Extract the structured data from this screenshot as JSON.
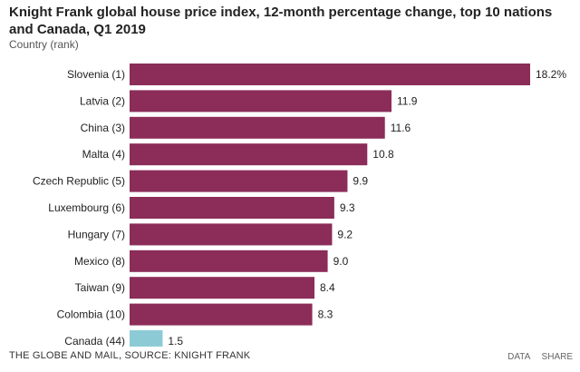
{
  "header": {
    "title": "Knight Frank global house price index, 12-month percentage change, top 10 nations and Canada, Q1 2019",
    "subtitle": "Country (rank)"
  },
  "footer": {
    "source": "THE GLOBE AND MAIL, SOURCE: KNIGHT FRANK",
    "data_label": "DATA",
    "share_label": "SHARE"
  },
  "colors": {
    "primary_bar": "#8b2d58",
    "highlight_bar": "#8ccbd6"
  },
  "chart_data": {
    "type": "bar",
    "orientation": "horizontal",
    "title": "Knight Frank global house price index, 12-month percentage change, top 10 nations and Canada, Q1 2019",
    "ylabel": "Country (rank)",
    "xlim": [
      0,
      18.2
    ],
    "grid": false,
    "categories": [
      "Slovenia (1)",
      "Latvia (2)",
      "China (3)",
      "Malta (4)",
      "Czech Republic (5)",
      "Luxembourg (6)",
      "Hungary (7)",
      "Mexico (8)",
      "Taiwan (9)",
      "Colombia (10)",
      "Canada (44)"
    ],
    "values": [
      18.2,
      11.9,
      11.6,
      10.8,
      9.9,
      9.3,
      9.2,
      9.0,
      8.4,
      8.3,
      1.5
    ],
    "value_labels": [
      "18.2%",
      "11.9",
      "11.6",
      "10.8",
      "9.9",
      "9.3",
      "9.2",
      "9.0",
      "8.4",
      "8.3",
      "1.5"
    ],
    "highlight": "Canada (44)"
  }
}
